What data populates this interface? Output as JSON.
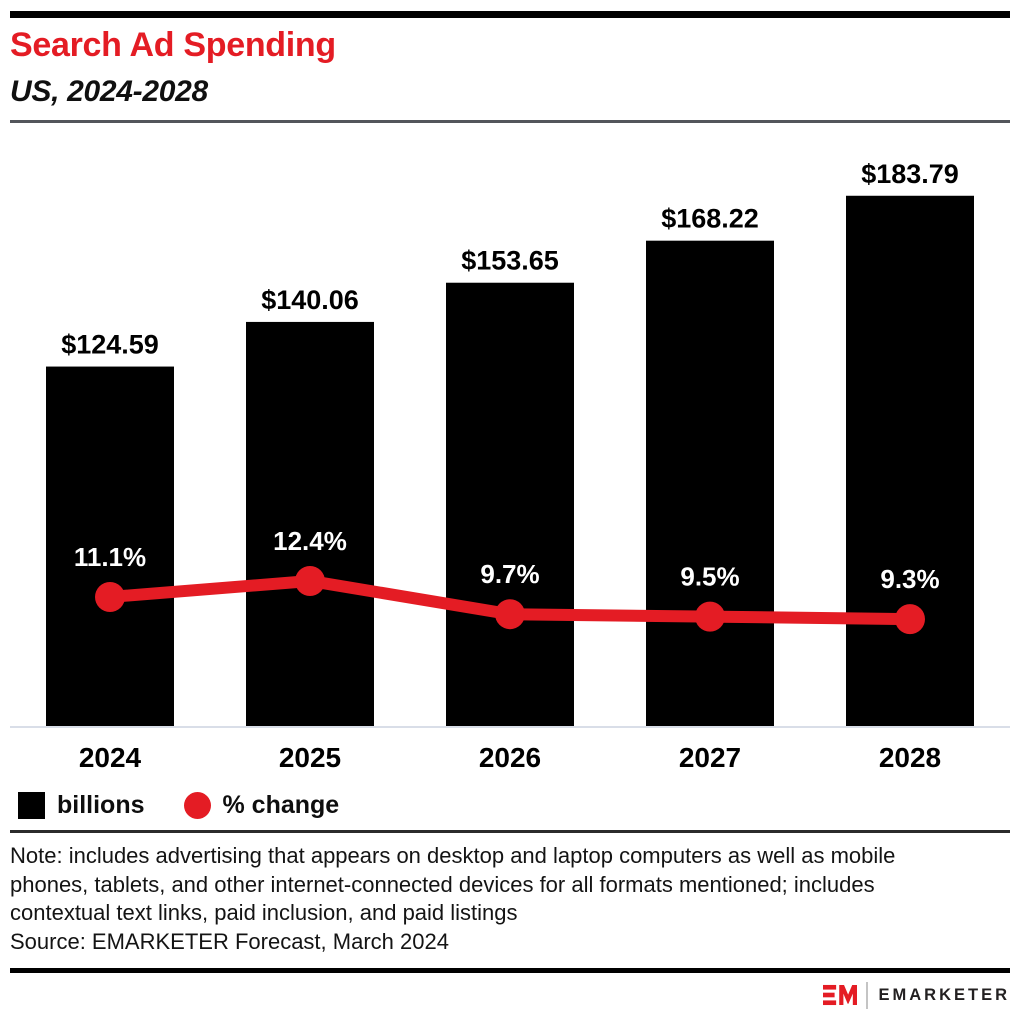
{
  "header": {
    "title": "Search Ad Spending",
    "subtitle": "US, 2024-2028"
  },
  "chart_data": {
    "type": "combo-bar-line",
    "title": "Search Ad Spending",
    "subtitle": "US, 2024-2028",
    "categories": [
      "2024",
      "2025",
      "2026",
      "2027",
      "2028"
    ],
    "series": [
      {
        "name": "billions",
        "type": "bar",
        "unit": "USD billions",
        "color": "#000000",
        "values": [
          124.59,
          140.06,
          153.65,
          168.22,
          183.79
        ],
        "labels": [
          "$124.59",
          "$140.06",
          "$153.65",
          "$168.22",
          "$183.79"
        ],
        "label_color": "#000000"
      },
      {
        "name": "% change",
        "type": "line",
        "unit": "percent",
        "color": "#E41C24",
        "values": [
          11.1,
          12.4,
          9.7,
          9.5,
          9.3
        ],
        "labels": [
          "11.1%",
          "12.4%",
          "9.7%",
          "9.5%",
          "9.3%"
        ],
        "label_color": "#FFFFFF"
      }
    ],
    "axis": {
      "x_ticks": [
        "2024",
        "2025",
        "2026",
        "2027",
        "2028"
      ],
      "baseline_color": "#D9DEE8",
      "y_axis_shown": false,
      "gridlines": false
    },
    "legend": {
      "position": "bottom-left"
    }
  },
  "footer": {
    "note": "Note: includes advertising that appears on desktop and laptop computers as well as mobile phones, tablets, and other internet-connected devices for all formats mentioned; includes contextual text links, paid inclusion, and paid listings",
    "source": "Source: EMARKETER Forecast, March 2024"
  },
  "branding": {
    "logo_monogram": "EM",
    "logo_text": "EMARKETER"
  },
  "colors": {
    "accent_red": "#E41C24",
    "bar_black": "#000000",
    "baseline": "#D9DEE8",
    "rule_gray": "#53565B"
  }
}
